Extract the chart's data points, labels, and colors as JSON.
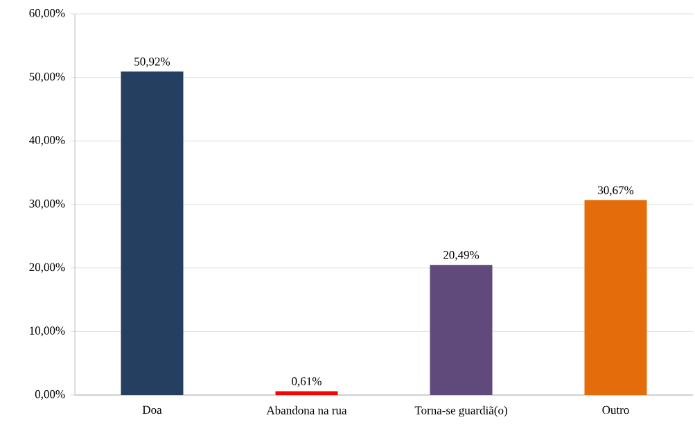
{
  "chart_data": {
    "type": "bar",
    "categories": [
      "Doa",
      "Abandona na rua",
      "Torna-se guardiã(o)",
      "Outro"
    ],
    "values": [
      50.92,
      0.61,
      20.49,
      30.67
    ],
    "colors": [
      "#243f60",
      "#ff0000",
      "#604a7b",
      "#e46c0a"
    ],
    "value_labels": [
      "50,92%",
      "0,61%",
      "20,49%",
      "30,67%"
    ],
    "ylim": [
      0,
      60
    ],
    "yticks": [
      {
        "value": 0,
        "label": "0,00%"
      },
      {
        "value": 10,
        "label": "10,00%"
      },
      {
        "value": 20,
        "label": "20,00%"
      },
      {
        "value": 30,
        "label": "30,00%"
      },
      {
        "value": 40,
        "label": "40,00%"
      },
      {
        "value": 50,
        "label": "50,00%"
      },
      {
        "value": 60,
        "label": "60,00%"
      }
    ],
    "grid": "y"
  }
}
